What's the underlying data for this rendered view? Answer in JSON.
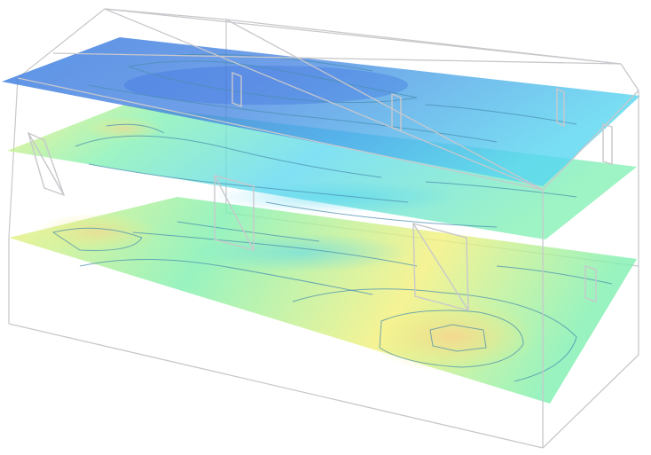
{
  "scene": {
    "kind": "3d-contour-slices",
    "slice_count": 3,
    "palette": {
      "background": "#ffffff",
      "wireframe": "#c8c8cc",
      "contour_line": "#4a8fb0",
      "low": "#3f7fe0",
      "mid": "#57d6f0",
      "mid_high": "#7ef0b0",
      "high": "#f3f07a",
      "peak": "#f6d690"
    },
    "slices": [
      {
        "name": "top-slice",
        "dominant_range": "low-mid"
      },
      {
        "name": "middle-slice",
        "dominant_range": "mid"
      },
      {
        "name": "bottom-slice",
        "dominant_range": "mid-high"
      }
    ]
  }
}
